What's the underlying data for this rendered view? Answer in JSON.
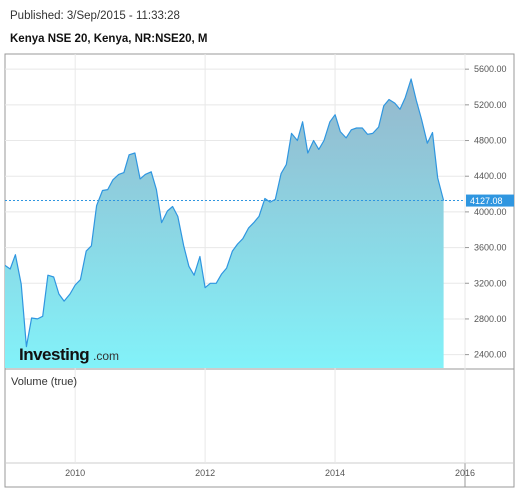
{
  "header": {
    "published": "Published: 3/Sep/2015 - 11:33:28",
    "title": "Kenya NSE 20, Kenya, NR:NSE20, M"
  },
  "volume_label": "Volume (true)",
  "logo": {
    "main": "Investing",
    "domain": ".com"
  },
  "colors": {
    "line": "#2f96e0",
    "fill_top": "#96b7cc",
    "fill_bottom": "#82f2f9",
    "last_price_bg": "#2f96e0",
    "grid": "#e8e8e8",
    "frame": "#999999"
  },
  "chart_data": {
    "type": "area",
    "title": "Kenya NSE 20, Kenya, NR:NSE20, M",
    "xlabel": "",
    "ylabel": "",
    "xlim": [
      2008.92,
      2016.0
    ],
    "ylim": [
      2250,
      5770
    ],
    "y_ticks": [
      "2400.00",
      "2800.00",
      "3200.00",
      "3600.00",
      "4000.00",
      "4400.00",
      "4800.00",
      "5200.00",
      "5600.00"
    ],
    "y_tick_values": [
      2400,
      2800,
      3200,
      3600,
      4000,
      4400,
      4800,
      5200,
      5600
    ],
    "x_ticks": [
      "2010",
      "2012",
      "2014",
      "2016"
    ],
    "x_tick_values": [
      2010,
      2012,
      2014,
      2016
    ],
    "last_price": 4127.08,
    "last_price_label": "4127.08",
    "grid": true,
    "series": [
      {
        "x": [
          2008.92,
          2009.0,
          2009.08,
          2009.17,
          2009.25,
          2009.33,
          2009.42,
          2009.5,
          2009.58,
          2009.67,
          2009.75,
          2009.83,
          2009.92,
          2010.0,
          2010.08,
          2010.17,
          2010.25,
          2010.33,
          2010.42,
          2010.5,
          2010.58,
          2010.67,
          2010.75,
          2010.83,
          2010.92,
          2011.0,
          2011.08,
          2011.17,
          2011.25,
          2011.33,
          2011.42,
          2011.5,
          2011.58,
          2011.67,
          2011.75,
          2011.83,
          2011.92,
          2012.0,
          2012.08,
          2012.17,
          2012.25,
          2012.33,
          2012.42,
          2012.5,
          2012.58,
          2012.67,
          2012.75,
          2012.83,
          2012.92,
          2013.0,
          2013.08,
          2013.17,
          2013.25,
          2013.33,
          2013.42,
          2013.5,
          2013.58,
          2013.67,
          2013.75,
          2013.83,
          2013.92,
          2014.0,
          2014.08,
          2014.17,
          2014.25,
          2014.33,
          2014.42,
          2014.5,
          2014.58,
          2014.67,
          2014.75,
          2014.83,
          2014.92,
          2015.0,
          2015.08,
          2015.17,
          2015.25,
          2015.33,
          2015.42,
          2015.5,
          2015.58,
          2015.67
        ],
        "values": [
          3400,
          3360,
          3520,
          3190,
          2490,
          2810,
          2800,
          2830,
          3290,
          3270,
          3080,
          3000,
          3080,
          3180,
          3240,
          3560,
          3620,
          4070,
          4240,
          4250,
          4360,
          4420,
          4440,
          4640,
          4660,
          4370,
          4420,
          4450,
          4250,
          3880,
          4010,
          4060,
          3950,
          3620,
          3390,
          3290,
          3500,
          3150,
          3200,
          3200,
          3300,
          3370,
          3560,
          3640,
          3700,
          3820,
          3880,
          3950,
          4150,
          4110,
          4140,
          4430,
          4530,
          4880,
          4800,
          5010,
          4660,
          4800,
          4700,
          4800,
          5010,
          5090,
          4900,
          4830,
          4920,
          4940,
          4940,
          4870,
          4880,
          4950,
          5190,
          5260,
          5220,
          5150,
          5280,
          5490,
          5250,
          5040,
          4770,
          4890,
          4380,
          4127
        ]
      }
    ]
  }
}
